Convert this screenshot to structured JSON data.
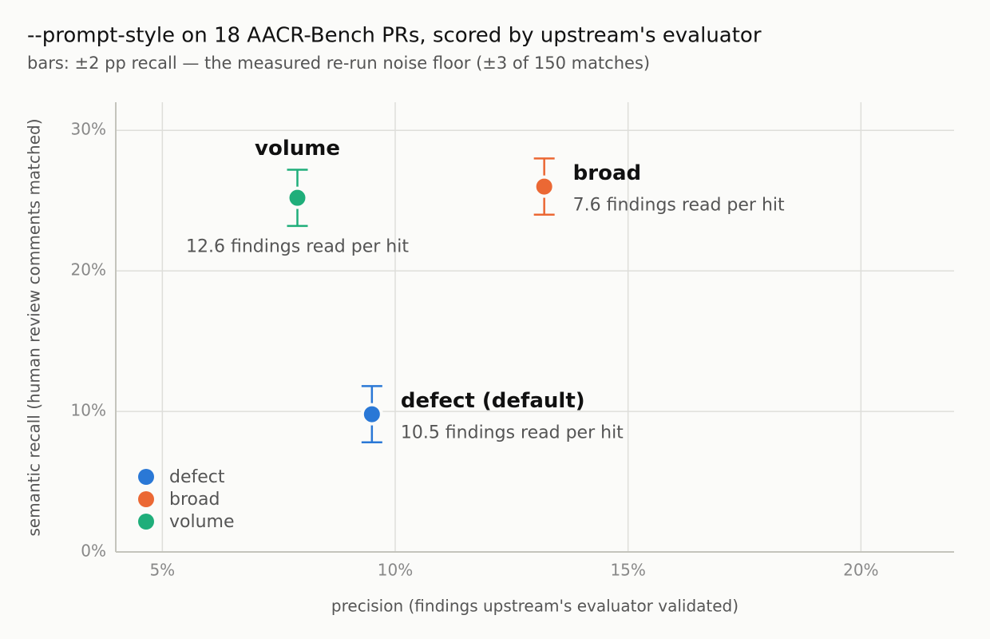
{
  "chart_data": {
    "type": "scatter",
    "title": "--prompt-style on 18 AACR-Bench PRs, scored by upstream's evaluator",
    "subtitle": "bars: ±2 pp recall — the measured re-run noise floor (±3 of 150 matches)",
    "x_label": "precision  (findings upstream's evaluator validated)",
    "y_label": "semantic recall  (human review comments matched)",
    "xlim": [
      4,
      22
    ],
    "ylim": [
      0,
      32
    ],
    "xticks": [
      {
        "value": 5,
        "label": "5%"
      },
      {
        "value": 10,
        "label": "10%"
      },
      {
        "value": 15,
        "label": "15%"
      },
      {
        "value": 20,
        "label": "20%"
      }
    ],
    "yticks": [
      {
        "value": 0,
        "label": "0%"
      },
      {
        "value": 10,
        "label": "10%"
      },
      {
        "value": 20,
        "label": "20%"
      },
      {
        "value": 30,
        "label": "30%"
      }
    ],
    "grid": true,
    "legend": "lower left",
    "series": [
      {
        "name": "defect",
        "label": "defect (default)",
        "note": "10.5 findings read per hit",
        "color": "#2a78d6",
        "x": [
          9.5
        ],
        "y": [
          9.8
        ],
        "yerr": [
          2
        ]
      },
      {
        "name": "broad",
        "label": "broad",
        "note": "7.6 findings read per hit",
        "color": "#eb6834",
        "x": [
          13.2
        ],
        "y": [
          26.0
        ],
        "yerr": [
          2
        ]
      },
      {
        "name": "volume",
        "label": "volume",
        "note": "12.6 findings read per hit",
        "color": "#1fae7a",
        "x": [
          7.9
        ],
        "y": [
          25.2
        ],
        "yerr": [
          2
        ]
      }
    ]
  }
}
